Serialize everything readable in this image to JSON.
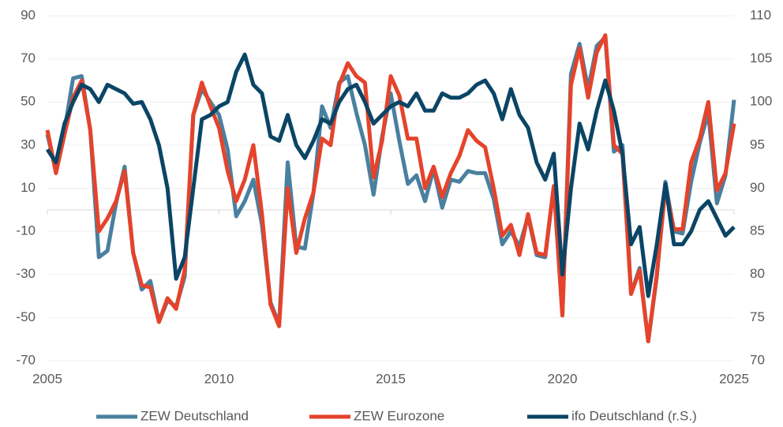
{
  "chart_data": {
    "type": "line",
    "x": [
      2005,
      2005.25,
      2005.5,
      2005.75,
      2006,
      2006.25,
      2006.5,
      2006.75,
      2007,
      2007.25,
      2007.5,
      2007.75,
      2008,
      2008.25,
      2008.5,
      2008.75,
      2009,
      2009.25,
      2009.5,
      2009.75,
      2010,
      2010.25,
      2010.5,
      2010.75,
      2011,
      2011.25,
      2011.5,
      2011.75,
      2012,
      2012.25,
      2012.5,
      2012.75,
      2013,
      2013.25,
      2013.5,
      2013.75,
      2014,
      2014.25,
      2014.5,
      2014.75,
      2015,
      2015.25,
      2015.5,
      2015.75,
      2016,
      2016.25,
      2016.5,
      2016.75,
      2017,
      2017.25,
      2017.5,
      2017.75,
      2018,
      2018.25,
      2018.5,
      2018.75,
      2019,
      2019.25,
      2019.5,
      2019.75,
      2020,
      2020.25,
      2020.5,
      2020.75,
      2021,
      2021.25,
      2021.5,
      2021.75,
      2022,
      2022.25,
      2022.5,
      2022.75,
      2023,
      2023.25,
      2023.5,
      2023.75,
      2024,
      2024.25,
      2024.5,
      2024.75,
      2025
    ],
    "series": [
      {
        "name": "ZEW Deutschland",
        "color": "#4a809f",
        "values": [
          35,
          18,
          37,
          61,
          62,
          37,
          -22,
          -19,
          3,
          20,
          -20,
          -37,
          -33,
          -52,
          -42,
          -45,
          -31,
          44,
          56,
          50,
          44,
          28,
          -3,
          4,
          14,
          -7,
          -43,
          -53,
          22,
          -17,
          -18,
          8,
          48,
          38,
          59,
          62,
          45,
          30,
          7,
          34,
          54,
          32,
          12,
          16,
          4,
          19,
          1,
          14,
          13,
          18,
          17,
          17,
          5,
          -16,
          -10,
          -17,
          -3,
          -21,
          -22,
          11,
          -49,
          63,
          77,
          56,
          76,
          80,
          27,
          30,
          -39,
          -27,
          -61,
          -31,
          13,
          -10,
          -11,
          13,
          31,
          45,
          3,
          16,
          51
        ]
      },
      {
        "name": "ZEW Eurozone",
        "color": "#e5432b",
        "values": [
          37,
          17,
          35,
          52,
          60,
          37,
          -10,
          -4,
          4,
          18,
          -20,
          -35,
          -36,
          -52,
          -41,
          -46,
          -28,
          44,
          59,
          48,
          38,
          18,
          4,
          14,
          30,
          -2,
          -44,
          -54,
          10,
          -20,
          -4,
          8,
          33,
          30,
          58,
          68,
          62,
          59,
          15,
          32,
          62,
          53,
          33,
          33,
          10,
          20,
          6,
          17,
          25,
          37,
          32,
          29,
          10,
          -12,
          -7,
          -21,
          -2,
          -20,
          -21,
          11,
          -49,
          58,
          75,
          52,
          73,
          81,
          30,
          26,
          -39,
          -28,
          -61,
          -30,
          10,
          -9,
          -9,
          22,
          33,
          50,
          9,
          17,
          40
        ]
      },
      {
        "name": "ifo Deutschland (r.S.)",
        "color": "#0b4566",
        "axis": "y2",
        "values": [
          94.5,
          93,
          97.5,
          100,
          102,
          101.5,
          100,
          102,
          101.5,
          101,
          99.8,
          100,
          98,
          95,
          90,
          79.5,
          82,
          90,
          98,
          98.5,
          99.5,
          100,
          103.5,
          105.5,
          102,
          101,
          96,
          95.5,
          98.5,
          95,
          93.5,
          95.5,
          98,
          97.5,
          100,
          101.5,
          102,
          100,
          97.5,
          98.5,
          99.5,
          100,
          99.5,
          101,
          99,
          99,
          101,
          100.5,
          100.5,
          101,
          102,
          102.5,
          101,
          98,
          101.5,
          98.5,
          97,
          93,
          91,
          94,
          80,
          90,
          97.5,
          94.5,
          99,
          102.5,
          99,
          94,
          83.5,
          85.5,
          77.5,
          83.5,
          90.5,
          83.5,
          83.5,
          85,
          87.5,
          88.5,
          86.5,
          84.5,
          85.5
        ]
      }
    ],
    "xlim": [
      2005,
      2025
    ],
    "xticks": [
      2005,
      2010,
      2015,
      2020,
      2025
    ],
    "ylim": [
      -70,
      90
    ],
    "yticks": [
      -70,
      -50,
      -30,
      -10,
      10,
      30,
      50,
      70,
      90
    ],
    "y2lim": [
      70,
      110
    ],
    "y2ticks": [
      70,
      75,
      80,
      85,
      90,
      95,
      100,
      105,
      110
    ],
    "grid": true,
    "legend": "bottom"
  }
}
